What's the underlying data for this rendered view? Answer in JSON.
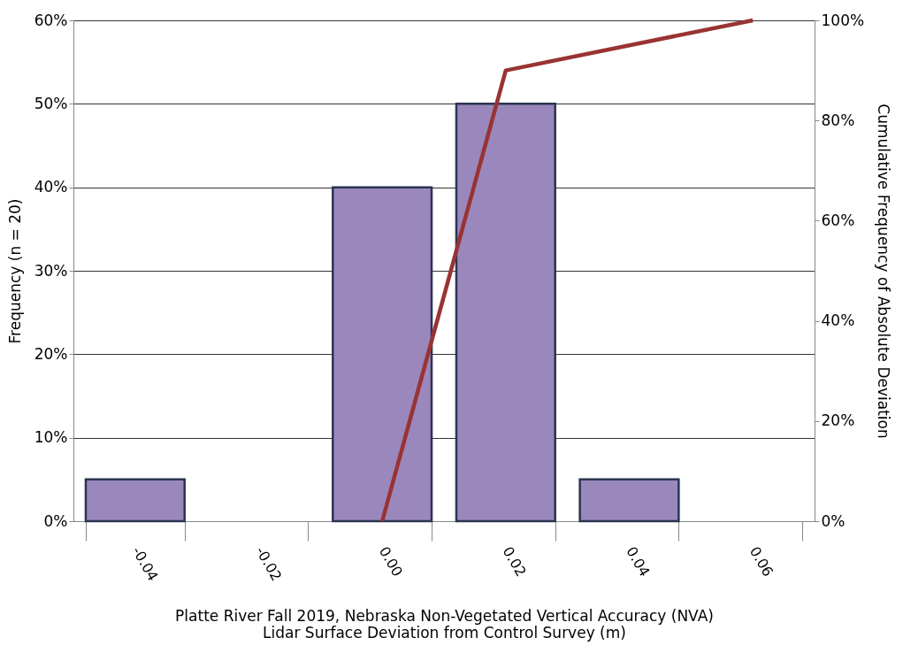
{
  "chart_data": {
    "type": "bar",
    "xlabel": "Platte River Fall 2019, Nebraska Non-Vegetated Vertical Accuracy (NVA)\nLidar Surface Deviation from Control Survey (m)",
    "ylabel": "Frequency (n = 20)",
    "y2label": "Cumulative Frequency of Absolute Deviation",
    "categories": [
      "-0.04",
      "-0.02",
      "0.00",
      "0.02",
      "0.04",
      "0.06"
    ],
    "series": [
      {
        "color": "#9a88bd",
        "values": [
          5,
          null,
          40,
          50,
          5,
          null
        ]
      },
      {
        "type": "line",
        "axis": "y2",
        "color": "#993333",
        "values": [
          null,
          null,
          0,
          90,
          95,
          100
        ]
      }
    ],
    "ylim": [
      0,
      60
    ],
    "yticks": [
      {
        "value": 0,
        "label": "0%"
      },
      {
        "value": 10,
        "label": "10%"
      },
      {
        "value": 20,
        "label": "20%"
      },
      {
        "value": 30,
        "label": "30%"
      },
      {
        "value": 40,
        "label": "40%"
      },
      {
        "value": 50,
        "label": "50%"
      },
      {
        "value": 60,
        "label": "60%"
      }
    ],
    "y2lim": [
      0,
      100
    ],
    "y2ticks": [
      {
        "value": 0,
        "label": "0%"
      },
      {
        "value": 20,
        "label": "20%"
      },
      {
        "value": 40,
        "label": "40%"
      },
      {
        "value": 60,
        "label": "60%"
      },
      {
        "value": 80,
        "label": "80%"
      },
      {
        "value": 100,
        "label": "100%"
      }
    ],
    "grid": "y",
    "line_style": "solid",
    "marker": "none"
  }
}
